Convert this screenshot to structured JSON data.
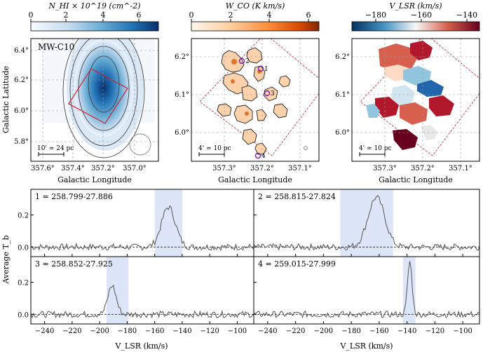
{
  "top_maps": {
    "nhi": {
      "cbar_label": "N_HI × 10^19 (cm^-2)",
      "cbar_ticks": [
        "0",
        "2",
        "4",
        "6"
      ],
      "region_label": "MW-C10",
      "x_ticks": [
        "357.6°",
        "357.4°",
        "357.2°",
        "357.0°"
      ],
      "y_ticks": [
        "6.4°",
        "6.2°",
        "6.0°",
        "5.8°"
      ],
      "xlabel": "Galactic Longitude",
      "ylabel": "Galactic Latitude",
      "scalebar": "10' ≃ 24 pc"
    },
    "wco": {
      "cbar_label": "W_CO (K km/s)",
      "cbar_ticks": [
        "0",
        "2",
        "4",
        "6"
      ],
      "x_ticks": [
        "357.3°",
        "357.2°",
        "357.1°"
      ],
      "y_ticks": [
        "6.2°",
        "6.1°",
        "6.0°"
      ],
      "xlabel": "Galactic Longitude",
      "scalebar": "4' ≃ 10 pc",
      "markers": [
        "1",
        "2",
        "3",
        "4"
      ]
    },
    "vlsr": {
      "cbar_label": "V_LSR (km/s)",
      "cbar_ticks": [
        "−180",
        "−160",
        "−140"
      ],
      "x_ticks": [
        "357.3°",
        "357.2°",
        "357.1°"
      ],
      "y_ticks": [
        "6.2°",
        "6.1°",
        "6.0°"
      ],
      "xlabel": "Galactic Longitude",
      "scalebar": "4' ≃ 10 pc"
    },
    "colors": {
      "nhi_cmap": [
        "#f7fbff",
        "#c6dbef",
        "#6baed6",
        "#2171b5",
        "#08306b"
      ],
      "wco_cmap": [
        "#fff5eb",
        "#fdd0a2",
        "#fd8d3c",
        "#d94801",
        "#7f2704"
      ],
      "vlsr_cmap": [
        "#053061",
        "#4393c3",
        "#f7f7f7",
        "#d6604d",
        "#67001f"
      ],
      "box_line": "#cc2233",
      "marker": "#7a1fa2"
    }
  },
  "chart_data": {
    "type": "line",
    "ylabel": "Average T_b",
    "xlabel": "V_LSR (km/s)",
    "xlim": [
      -250,
      -88
    ],
    "ylim": [
      -0.06,
      0.36
    ],
    "x_ticks": [
      "−240",
      "−220",
      "−200",
      "−180",
      "−160",
      "−140",
      "−120",
      "−100"
    ],
    "y_ticks": [
      "0.0",
      "0.2"
    ],
    "panels": [
      {
        "label": "1 = 258.799-27.886",
        "peak_v": -150,
        "peak_tb": 0.25,
        "width": 5,
        "shade": [
          -160,
          -140
        ]
      },
      {
        "label": "2 = 258.815-27.824",
        "peak_v": -162,
        "peak_tb": 0.31,
        "width": 6,
        "shade": [
          -188,
          -150
        ]
      },
      {
        "label": "3 = 258.852-27.925",
        "peak_v": -191,
        "peak_tb": 0.18,
        "width": 3,
        "shade": [
          -195,
          -179
        ]
      },
      {
        "label": "4 = 259.015-27.999",
        "peak_v": -138,
        "peak_tb": 0.33,
        "width": 1.6,
        "shade": [
          -143,
          -134
        ]
      }
    ],
    "line_color": "#555555",
    "shade_color": "#dde5f8"
  }
}
